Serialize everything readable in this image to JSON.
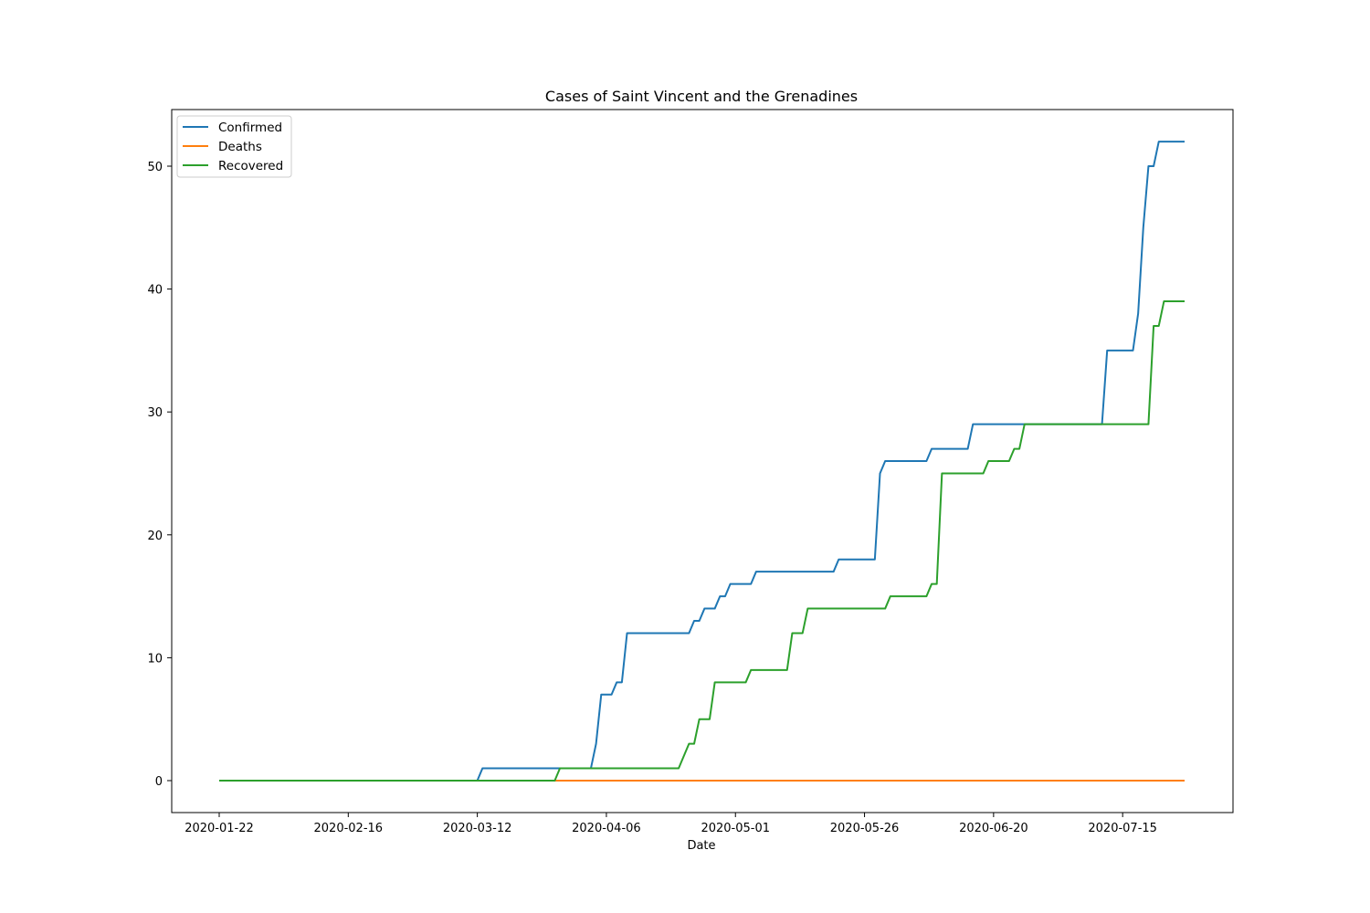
{
  "chart_data": {
    "type": "line",
    "title": "Cases of Saint Vincent and the Grenadines",
    "xlabel": "Date",
    "ylabel": "",
    "x_start": "2020-01-22",
    "x_end": "2020-07-27",
    "x_ticks": [
      "2020-01-22",
      "2020-02-16",
      "2020-03-12",
      "2020-04-06",
      "2020-05-01",
      "2020-05-26",
      "2020-06-20",
      "2020-07-15"
    ],
    "y_ticks": [
      0,
      10,
      20,
      30,
      40,
      50
    ],
    "ylim": [
      -2.6,
      54.6
    ],
    "grid": false,
    "legend": "top-left",
    "series": [
      {
        "name": "Confirmed",
        "color": "#1f77b4",
        "points": [
          [
            "2020-01-22",
            0
          ],
          [
            "2020-03-12",
            0
          ],
          [
            "2020-03-13",
            1
          ],
          [
            "2020-03-31",
            1
          ],
          [
            "2020-04-03",
            1
          ],
          [
            "2020-04-04",
            3
          ],
          [
            "2020-04-05",
            7
          ],
          [
            "2020-04-07",
            7
          ],
          [
            "2020-04-08",
            8
          ],
          [
            "2020-04-09",
            8
          ],
          [
            "2020-04-10",
            12
          ],
          [
            "2020-04-22",
            12
          ],
          [
            "2020-04-23",
            13
          ],
          [
            "2020-04-24",
            13
          ],
          [
            "2020-04-25",
            14
          ],
          [
            "2020-04-27",
            14
          ],
          [
            "2020-04-28",
            15
          ],
          [
            "2020-04-29",
            15
          ],
          [
            "2020-04-30",
            16
          ],
          [
            "2020-05-04",
            16
          ],
          [
            "2020-05-05",
            17
          ],
          [
            "2020-05-20",
            17
          ],
          [
            "2020-05-21",
            18
          ],
          [
            "2020-05-28",
            18
          ],
          [
            "2020-05-29",
            25
          ],
          [
            "2020-05-30",
            26
          ],
          [
            "2020-06-07",
            26
          ],
          [
            "2020-06-08",
            27
          ],
          [
            "2020-06-15",
            27
          ],
          [
            "2020-06-16",
            29
          ],
          [
            "2020-07-11",
            29
          ],
          [
            "2020-07-12",
            35
          ],
          [
            "2020-07-17",
            35
          ],
          [
            "2020-07-18",
            38
          ],
          [
            "2020-07-19",
            45
          ],
          [
            "2020-07-20",
            50
          ],
          [
            "2020-07-21",
            50
          ],
          [
            "2020-07-22",
            52
          ],
          [
            "2020-07-27",
            52
          ]
        ]
      },
      {
        "name": "Deaths",
        "color": "#ff7f0e",
        "points": [
          [
            "2020-01-22",
            0
          ],
          [
            "2020-07-27",
            0
          ]
        ]
      },
      {
        "name": "Recovered",
        "color": "#2ca02c",
        "points": [
          [
            "2020-01-22",
            0
          ],
          [
            "2020-03-27",
            0
          ],
          [
            "2020-03-28",
            1
          ],
          [
            "2020-04-20",
            1
          ],
          [
            "2020-04-22",
            3
          ],
          [
            "2020-04-23",
            3
          ],
          [
            "2020-04-24",
            5
          ],
          [
            "2020-04-26",
            5
          ],
          [
            "2020-04-27",
            8
          ],
          [
            "2020-05-03",
            8
          ],
          [
            "2020-05-04",
            9
          ],
          [
            "2020-05-11",
            9
          ],
          [
            "2020-05-12",
            12
          ],
          [
            "2020-05-14",
            12
          ],
          [
            "2020-05-15",
            14
          ],
          [
            "2020-05-30",
            14
          ],
          [
            "2020-05-31",
            15
          ],
          [
            "2020-06-07",
            15
          ],
          [
            "2020-06-08",
            16
          ],
          [
            "2020-06-09",
            16
          ],
          [
            "2020-06-10",
            25
          ],
          [
            "2020-06-18",
            25
          ],
          [
            "2020-06-19",
            26
          ],
          [
            "2020-06-23",
            26
          ],
          [
            "2020-06-24",
            27
          ],
          [
            "2020-06-25",
            27
          ],
          [
            "2020-06-26",
            29
          ],
          [
            "2020-07-20",
            29
          ],
          [
            "2020-07-21",
            37
          ],
          [
            "2020-07-22",
            37
          ],
          [
            "2020-07-23",
            39
          ],
          [
            "2020-07-27",
            39
          ]
        ]
      }
    ]
  }
}
